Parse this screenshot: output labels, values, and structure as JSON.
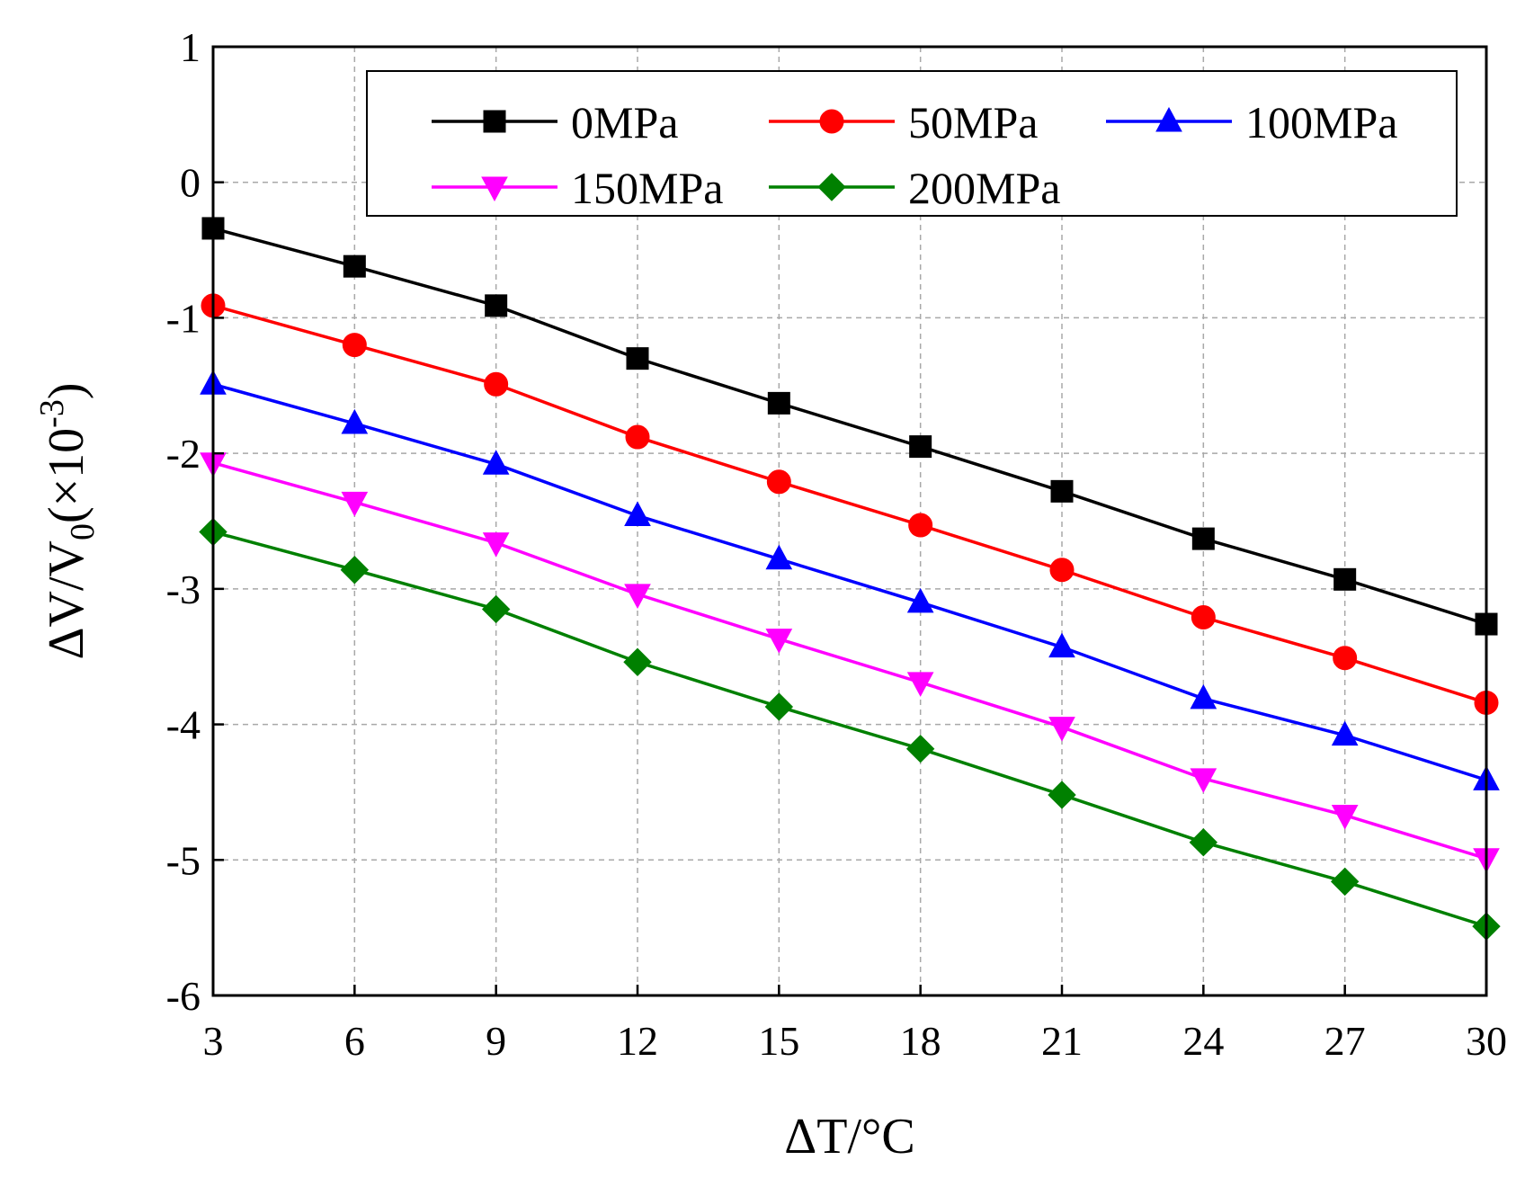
{
  "chart_data": {
    "type": "line",
    "xlabel": "ΔT/°C",
    "ylabel_parts": {
      "lead": "ΔV/V",
      "sub": "0",
      "paren": "(×10",
      "sup": "-3",
      "close": ")"
    },
    "x": [
      3,
      6,
      9,
      12,
      15,
      18,
      21,
      24,
      27,
      30
    ],
    "xticks": [
      "3",
      "6",
      "9",
      "12",
      "15",
      "18",
      "21",
      "24",
      "27",
      "30"
    ],
    "yticks": [
      "1",
      "0",
      "-1",
      "-2",
      "-3",
      "-4",
      "-5",
      "-6"
    ],
    "xlim": [
      3,
      30
    ],
    "ylim": [
      -6,
      1
    ],
    "grid": true,
    "legend_position": "top",
    "series": [
      {
        "name": "0MPa",
        "color": "#000000",
        "marker": "square",
        "values": [
          -0.34,
          -0.62,
          -0.91,
          -1.3,
          -1.63,
          -1.95,
          -2.28,
          -2.63,
          -2.93,
          -3.26
        ]
      },
      {
        "name": "50MPa",
        "color": "#ff0000",
        "marker": "circle",
        "values": [
          -0.91,
          -1.2,
          -1.49,
          -1.88,
          -2.21,
          -2.53,
          -2.86,
          -3.21,
          -3.51,
          -3.84
        ]
      },
      {
        "name": "100MPa",
        "color": "#0000ff",
        "marker": "triangle-up",
        "values": [
          -1.49,
          -1.78,
          -2.08,
          -2.46,
          -2.78,
          -3.1,
          -3.43,
          -3.81,
          -4.08,
          -4.41
        ]
      },
      {
        "name": "150MPa",
        "color": "#ff00ff",
        "marker": "triangle-down",
        "values": [
          -2.07,
          -2.36,
          -2.66,
          -3.04,
          -3.37,
          -3.69,
          -4.02,
          -4.4,
          -4.67,
          -4.99
        ]
      },
      {
        "name": "200MPa",
        "color": "#008000",
        "marker": "diamond",
        "values": [
          -2.58,
          -2.86,
          -3.15,
          -3.54,
          -3.87,
          -4.18,
          -4.52,
          -4.87,
          -5.16,
          -5.49
        ]
      }
    ]
  }
}
